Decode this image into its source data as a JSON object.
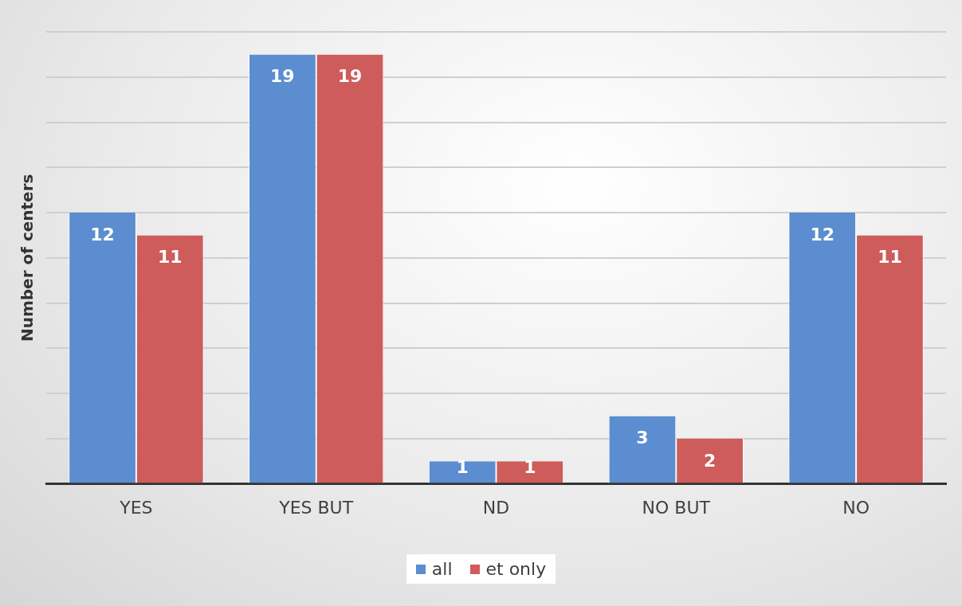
{
  "chart_data": {
    "type": "bar",
    "ylabel": "Number of centers",
    "categories": [
      "YES",
      "YES BUT",
      "ND",
      "NO BUT",
      "NO"
    ],
    "series": [
      {
        "name": "all",
        "color": "#5b8dd0",
        "values": [
          12,
          19,
          1,
          3,
          12
        ]
      },
      {
        "name": "et only",
        "color": "#cd5c5a",
        "values": [
          11,
          19,
          1,
          2,
          11
        ]
      }
    ],
    "ylim": [
      0,
      20
    ],
    "yticks": [
      {
        "value": 0,
        "label": null
      },
      {
        "value": 2,
        "label": null
      },
      {
        "value": 4,
        "label": null
      },
      {
        "value": 6,
        "label": null
      },
      {
        "value": 8,
        "label": null
      },
      {
        "value": 10,
        "label": null
      },
      {
        "value": 12,
        "label": null
      },
      {
        "value": 14,
        "label": null
      },
      {
        "value": 16,
        "label": null
      },
      {
        "value": 18,
        "label": null
      },
      {
        "value": 20,
        "label": null
      }
    ],
    "grid": "y",
    "legend": "bottom",
    "data_labels": true
  }
}
